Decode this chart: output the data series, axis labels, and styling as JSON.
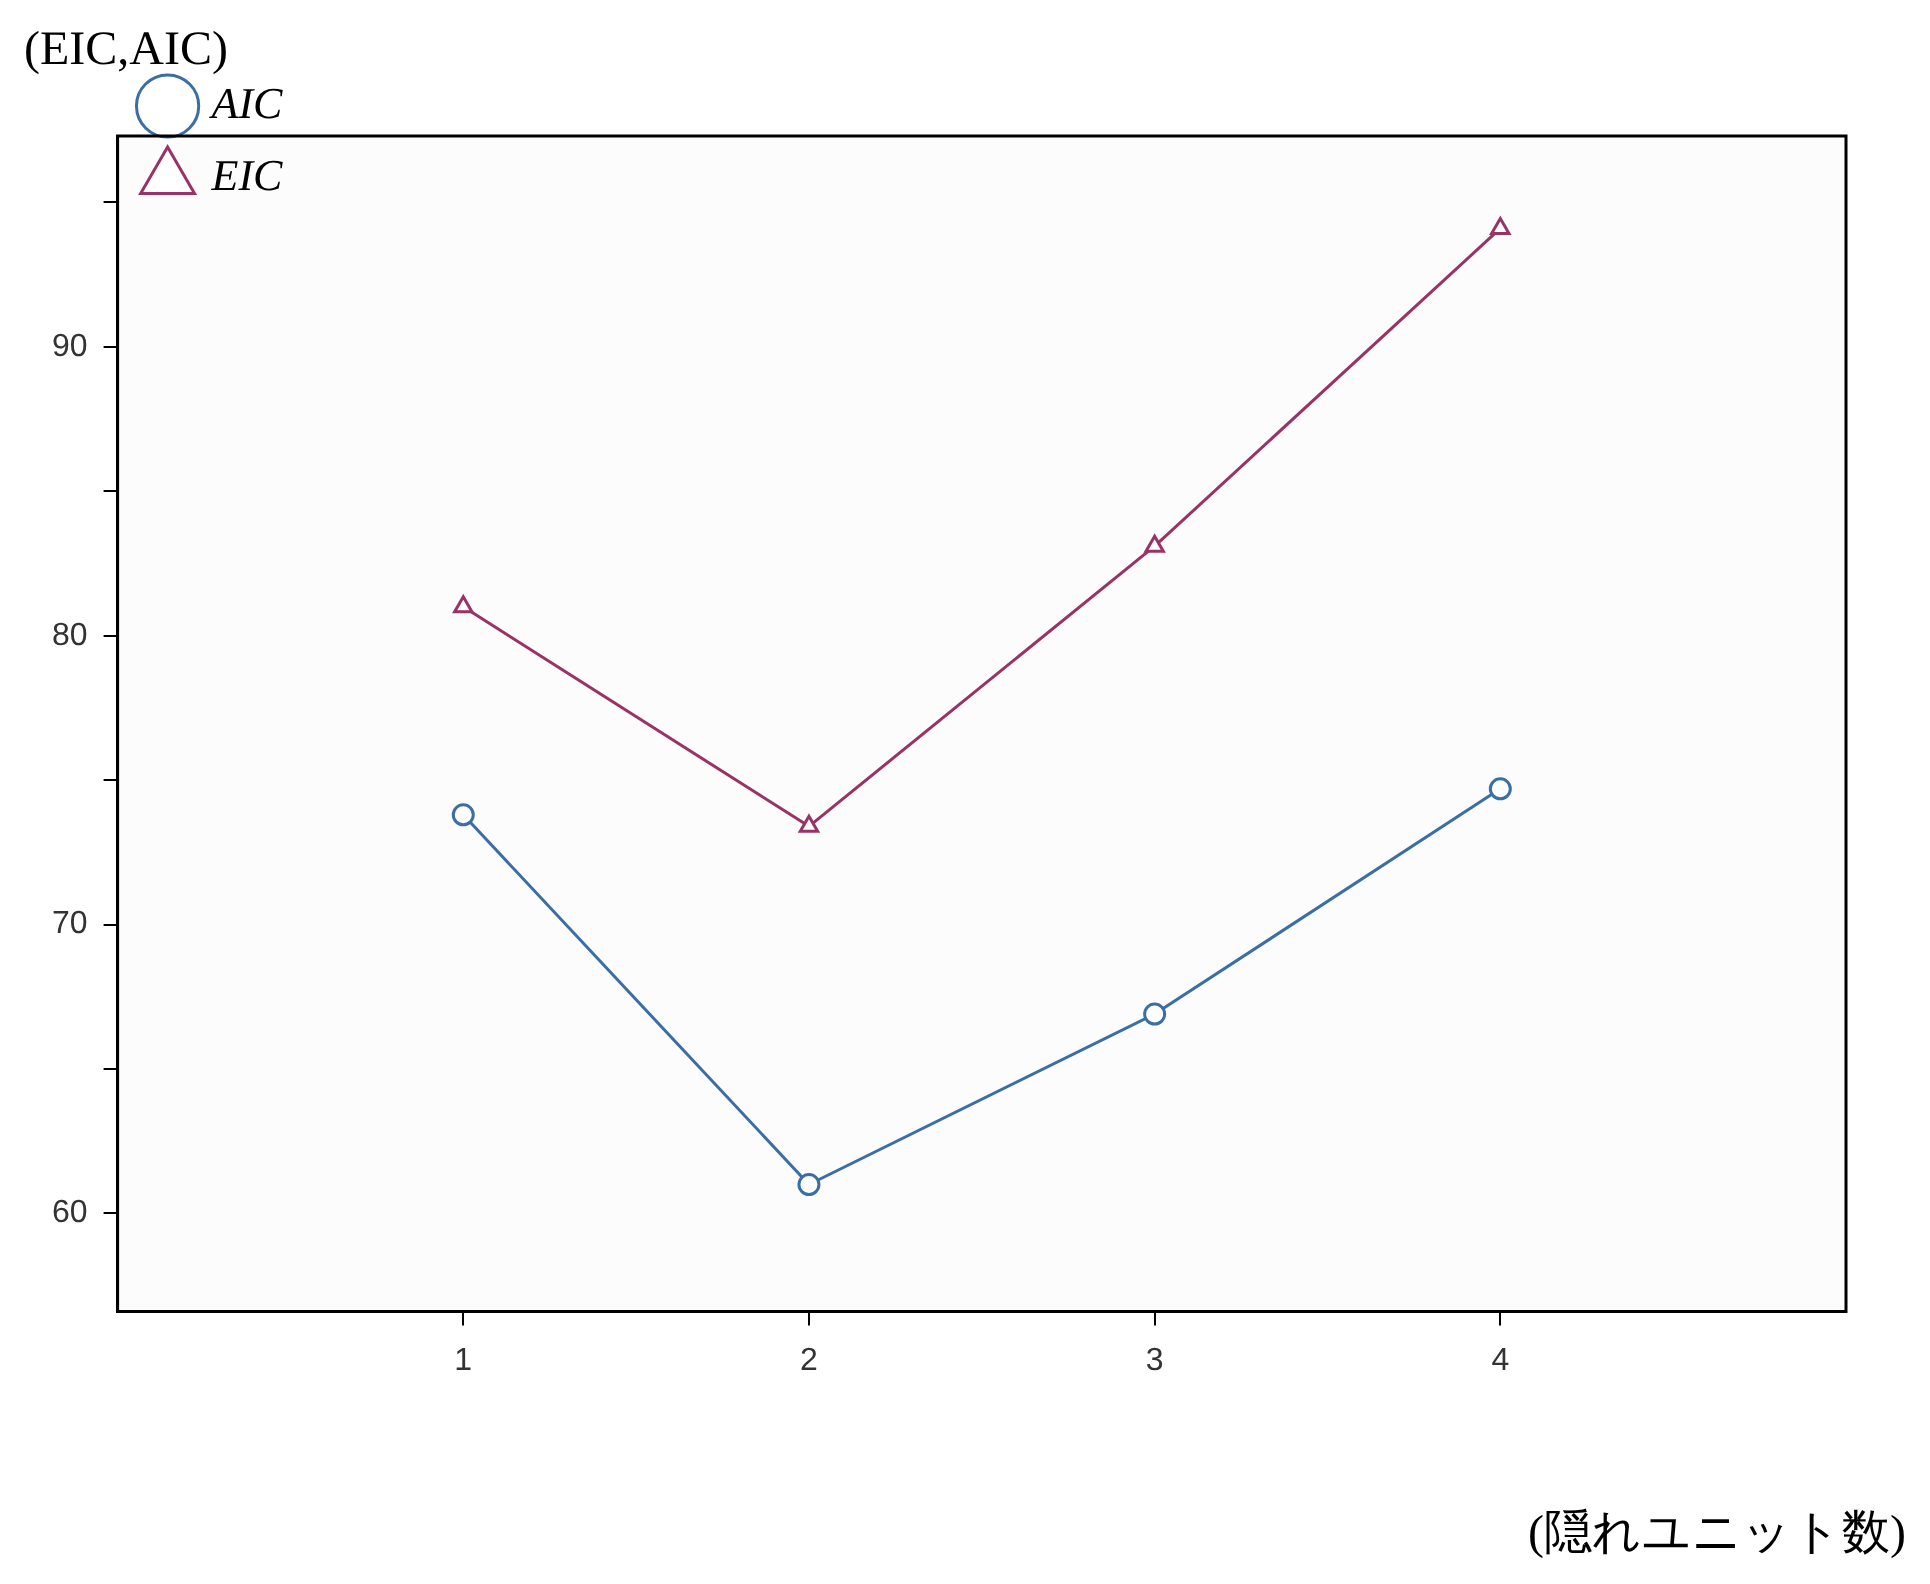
{
  "chart_data": {
    "type": "line",
    "ylabel": "(EIC,AIC)",
    "xlabel": "(隠れユニット数)",
    "x": [
      1,
      2,
      3,
      4
    ],
    "series": [
      {
        "name": "AIC",
        "color": "#3a6ea5",
        "marker": "circle",
        "values": [
          73.8,
          61,
          66.9,
          74.7
        ]
      },
      {
        "name": "EIC",
        "color": "#993366",
        "marker": "triangle",
        "values": [
          81,
          73.4,
          83.1,
          94.1
        ]
      }
    ],
    "xlim": [
      0,
      5
    ],
    "xticks": [
      1,
      2,
      3,
      4
    ],
    "ylim": [
      56.6,
      97.3
    ],
    "yticks": [
      60,
      {
        "value": 65,
        "label": null
      },
      70,
      {
        "value": 75,
        "label": null
      },
      80,
      {
        "value": 85,
        "label": null
      },
      90,
      {
        "value": 95,
        "label": null
      }
    ],
    "grid": false,
    "legend": "top left",
    "line_style": "solid"
  }
}
